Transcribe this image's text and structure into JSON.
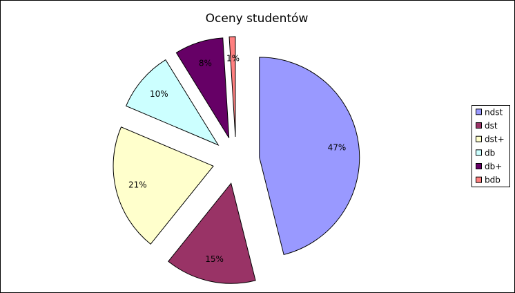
{
  "chart_data": {
    "type": "pie",
    "title": "Oceny studentów",
    "categories": [
      "ndst",
      "dst",
      "dst+",
      "db",
      "db+",
      "bdb"
    ],
    "values": [
      47,
      15,
      21,
      10,
      8,
      1
    ],
    "value_labels": [
      "47%",
      "15%",
      "21%",
      "10%",
      "8%",
      "1%"
    ],
    "colors": [
      "#9999ff",
      "#993366",
      "#ffffcc",
      "#ccffff",
      "#660066",
      "#ff8080"
    ],
    "legend": "right"
  }
}
